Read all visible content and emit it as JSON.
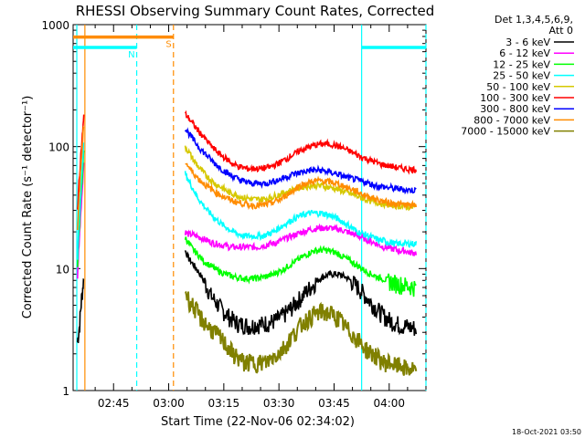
{
  "chart_data": {
    "type": "line",
    "title": "RHESSI Observing Summary Count Rates, Corrected",
    "xlabel": "Start Time (22-Nov-06 02:34:02)",
    "ylabel": "Corrected Count Rate (s⁻¹ detector⁻¹)",
    "yscale": "log",
    "ylim": [
      1,
      1000
    ],
    "xlim": [
      "02:34",
      "04:10"
    ],
    "x_ticks": [
      "02:45",
      "03:00",
      "03:15",
      "03:30",
      "03:45",
      "04:00"
    ],
    "y_ticks": [
      "1",
      "10",
      "100",
      "1000"
    ],
    "legend_header": [
      "Det 1,3,4,5,6,9,",
      "Att 0"
    ],
    "legend_placement": "right",
    "footer": "18-Oct-2021 03:50",
    "x_minutes_from_0234": [
      0,
      1,
      2,
      3,
      4,
      5,
      6,
      7,
      8,
      9,
      10,
      11,
      12,
      13,
      14,
      15,
      16,
      17,
      18,
      19,
      20,
      21,
      22,
      23,
      24,
      25,
      26,
      27,
      28,
      29,
      30,
      31,
      32,
      33,
      34,
      35,
      36,
      37,
      38,
      39,
      40,
      41,
      42,
      43,
      44,
      45,
      46,
      47,
      48,
      49,
      50,
      51,
      52,
      53,
      54,
      55,
      56,
      57,
      58,
      59,
      60,
      61,
      62,
      63,
      64,
      65,
      66,
      67,
      68,
      69,
      70,
      71,
      72,
      73,
      74,
      75,
      76,
      77,
      78,
      79,
      80,
      81,
      82,
      83,
      84,
      85,
      86,
      87,
      88,
      89,
      90,
      91,
      92,
      93,
      94,
      95
    ],
    "series": [
      {
        "name": "3 - 6 keV",
        "color": "#000000",
        "segments": [
          {
            "start": 1.2,
            "end": 3,
            "values": [
              2.5,
              3.5,
              6,
              9
            ]
          },
          {
            "start": 30.5,
            "end": 93.5,
            "values": [
              14,
              12,
              11,
              10,
              9,
              8,
              7,
              6,
              5.5,
              5,
              4.6,
              4.3,
              4,
              3.8,
              3.6,
              3.5,
              3.5,
              3.4,
              3.4,
              3.5,
              3.5,
              3.5,
              3.6,
              3.6,
              3.7,
              3.8,
              4,
              4.2,
              4.5,
              4.8,
              5.2,
              5.6,
              6,
              6.5,
              7,
              7.5,
              8,
              8.4,
              8.7,
              8.9,
              9,
              9,
              8.9,
              8.7,
              8.4,
              8,
              7.5,
              7,
              6.5,
              6,
              5.5,
              5.1,
              4.7,
              4.4,
              4.1,
              3.9,
              3.7,
              3.6,
              3.5,
              3.4,
              3.4,
              3.3,
              3.3,
              3.2
            ]
          }
        ]
      },
      {
        "name": "6 - 12 keV",
        "color": "#ff00ff",
        "segments": [
          {
            "start": 1.2,
            "end": 3,
            "values": [
              8,
              20,
              40,
              80
            ]
          },
          {
            "start": 30.5,
            "end": 93.5,
            "values": [
              20,
              19,
              19,
              18.5,
              18,
              17.5,
              17,
              16.5,
              16,
              16,
              15.5,
              15.5,
              15,
              15,
              15,
              15,
              15,
              15,
              15,
              15,
              15,
              15.5,
              15.5,
              16,
              16,
              16.5,
              17,
              17.5,
              18,
              18.5,
              19,
              19.5,
              20,
              20.5,
              21,
              21,
              21.5,
              21.5,
              21.5,
              21.5,
              21.5,
              21,
              21,
              20.5,
              20,
              19.5,
              19,
              18.5,
              18,
              17.5,
              17,
              16.5,
              16,
              15.5,
              15,
              15,
              14.5,
              14.5,
              14,
              14,
              14,
              13.5,
              13.5,
              13.5
            ]
          }
        ]
      },
      {
        "name": "12 - 25 keV",
        "color": "#00ff00",
        "segments": [
          {
            "start": 1.2,
            "end": 3,
            "values": [
              10,
              25,
              50,
              100
            ]
          },
          {
            "start": 30.5,
            "end": 93.5,
            "values": [
              18,
              16,
              14.5,
              13.5,
              12.5,
              11.5,
              11,
              10.5,
              10,
              9.6,
              9.3,
              9,
              8.8,
              8.6,
              8.5,
              8.4,
              8.3,
              8.3,
              8.3,
              8.3,
              8.4,
              8.5,
              8.6,
              8.8,
              9,
              9.3,
              9.6,
              10,
              10.5,
              11,
              11.5,
              12,
              12.5,
              13,
              13.5,
              14,
              14,
              14.2,
              14.2,
              14,
              13.8,
              13.5,
              13,
              12.5,
              12,
              11.5,
              11,
              10.5,
              10,
              9.6,
              9.2,
              8.9,
              8.6,
              8.4,
              8.2,
              8,
              7.8,
              7.6,
              7.5,
              7.4,
              7.3,
              7.2,
              7.1,
              7
            ]
          }
        ]
      },
      {
        "name": "25 - 50 keV",
        "color": "#00ffff",
        "segments": [
          {
            "start": 1.2,
            "end": 3,
            "values": [
              12,
              30,
              60,
              120
            ]
          },
          {
            "start": 30.5,
            "end": 93.5,
            "values": [
              60,
              52,
              46,
              40,
              36,
              33,
              30,
              28,
              26,
              24.5,
              23,
              22,
              21,
              20,
              19.5,
              19,
              18.5,
              18.5,
              18.5,
              18.5,
              18.5,
              18.5,
              19,
              19.5,
              20,
              21,
              22,
              23,
              24,
              25,
              26,
              27,
              27.5,
              28,
              28.5,
              28.5,
              28.5,
              28.5,
              28,
              27.5,
              27,
              26,
              25,
              24,
              23,
              22,
              21,
              20,
              19.5,
              19,
              18.5,
              18,
              17.5,
              17,
              17,
              16.5,
              16.5,
              16,
              16,
              16,
              16,
              16,
              16,
              16
            ]
          }
        ]
      },
      {
        "name": "50 - 100 keV",
        "color": "#d6c800",
        "segments": [
          {
            "start": 30.5,
            "end": 93.5,
            "values": [
              100,
              90,
              80,
              72,
              66,
              61,
              57,
              53,
              50,
              48,
              46,
              44,
              42,
              41,
              40,
              39,
              38,
              38,
              37,
              37,
              37,
              37,
              37.5,
              38,
              39,
              40,
              41,
              42,
              43,
              44,
              45,
              46,
              47,
              47,
              48,
              48,
              48,
              48,
              47,
              46.5,
              46,
              45,
              44,
              43,
              42,
              41,
              40,
              39,
              38,
              37,
              36,
              35.5,
              35,
              34.5,
              34,
              33.5,
              33,
              33,
              32.5,
              32.5,
              32,
              32,
              32,
              32
            ]
          }
        ]
      },
      {
        "name": "100 - 300 keV",
        "color": "#ff0000",
        "segments": [
          {
            "start": 1.2,
            "end": 3,
            "values": [
              30,
              60,
              110,
              190
            ]
          },
          {
            "start": 30.5,
            "end": 93.5,
            "values": [
              185,
              170,
              155,
              142,
              130,
              120,
              110,
              102,
              95,
              89,
              84,
              80,
              76,
              72,
              70,
              68,
              67,
              66,
              66,
              66,
              66,
              66,
              67,
              68,
              70,
              72,
              75,
              78,
              81,
              85,
              88,
              92,
              95,
              98,
              100,
              102,
              104,
              105,
              105,
              105,
              104,
              102,
              100,
              97,
              94,
              91,
              88,
              85,
              82,
              80,
              78,
              76,
              74,
              72,
              71,
              70,
              69,
              68,
              67,
              66,
              66,
              65,
              65,
              65
            ]
          }
        ]
      },
      {
        "name": "300 - 800 keV",
        "color": "#0000ff",
        "segments": [
          {
            "start": 30.5,
            "end": 93.5,
            "values": [
              140,
              128,
              116,
              106,
              97,
              90,
              84,
              78,
              73,
              69,
              65,
              62,
              59,
              57,
              55,
              53,
              52,
              51,
              50,
              50,
              50,
              50,
              50,
              51,
              52,
              53,
              54,
              56,
              57,
              59,
              60,
              61,
              62,
              63,
              64,
              64,
              64,
              64,
              63,
              62,
              61,
              60,
              59,
              57,
              56,
              55,
              54,
              53,
              52,
              51,
              50,
              49,
              48,
              47,
              47,
              46,
              46,
              45,
              45,
              45,
              44,
              44,
              44,
              44
            ]
          }
        ]
      },
      {
        "name": "800 - 7000 keV",
        "color": "#ff8c00",
        "segments": [
          {
            "start": 1.2,
            "end": 3,
            "values": [
              20,
              45,
              90,
              160
            ]
          },
          {
            "start": 30.5,
            "end": 93.5,
            "values": [
              75,
              68,
              62,
              57,
              53,
              50,
              47,
              45,
              43,
              41,
              39.5,
              38,
              37,
              36,
              35,
              34.5,
              34,
              33.5,
              33,
              33,
              33,
              33,
              33.5,
              34,
              35,
              36,
              37,
              39,
              41,
              43,
              45,
              47,
              49,
              50,
              51,
              52,
              52.5,
              52.5,
              52,
              51.5,
              51,
              50,
              49,
              48,
              46,
              45,
              44,
              42.5,
              41,
              40,
              39,
              38,
              37,
              36,
              35.5,
              35,
              34.5,
              34,
              34,
              33.5,
              33.5,
              33,
              33,
              33
            ]
          }
        ]
      },
      {
        "name": "7000 - 15000 keV",
        "color": "#808000",
        "segments": [
          {
            "start": 30.5,
            "end": 93.5,
            "values": [
              6.5,
              5.5,
              5,
              4.5,
              4,
              3.7,
              3.4,
              3.2,
              3,
              2.8,
              2.6,
              2.4,
              2.2,
              2.0,
              1.9,
              1.8,
              1.7,
              1.7,
              1.7,
              1.7,
              1.7,
              1.7,
              1.7,
              1.8,
              1.9,
              2,
              2.1,
              2.3,
              2.5,
              2.8,
              3,
              3.3,
              3.6,
              3.8,
              4,
              4.2,
              4.3,
              4.4,
              4.4,
              4.3,
              4.2,
              4,
              3.8,
              3.5,
              3.2,
              3,
              2.8,
              2.6,
              2.4,
              2.2,
              2.1,
              2,
              1.9,
              1.8,
              1.7,
              1.7,
              1.7,
              1.6,
              1.6,
              1.6,
              1.5,
              1.5,
              1.5,
              1.4
            ]
          }
        ]
      }
    ],
    "flags": [
      {
        "label": "S",
        "color": "#ff8c00",
        "y": 790,
        "start": 0,
        "end": 27.3
      },
      {
        "label": "N",
        "color": "#00ffff",
        "y": 650,
        "start": 0,
        "end": 17.3
      },
      {
        "label": "",
        "color": "#00ffff",
        "y": 650,
        "start": 78.5,
        "end": 96
      }
    ],
    "vlines": [
      {
        "x": 1.0,
        "color": "#00ffff",
        "dash": false
      },
      {
        "x": 3.2,
        "color": "#ff8c00",
        "dash": false
      },
      {
        "x": 17.3,
        "color": "#00ffff",
        "dash": true
      },
      {
        "x": 27.3,
        "color": "#ff8c00",
        "dash": true
      },
      {
        "x": 78.5,
        "color": "#00ffff",
        "dash": false
      },
      {
        "x": 96.0,
        "color": "#00ffff",
        "dash": true
      }
    ]
  }
}
